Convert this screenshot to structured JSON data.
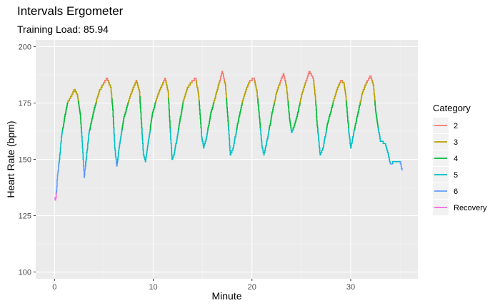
{
  "chart_data": {
    "type": "line",
    "title": "Intervals Ergometer",
    "subtitle": "Training Load: 85.94",
    "xlabel": "Minute",
    "ylabel": "Heart Rate (bpm)",
    "xlim": [
      -1.9,
      36.8
    ],
    "ylim": [
      97,
      203
    ],
    "x_ticks": [
      0,
      10,
      20,
      30
    ],
    "y_ticks": [
      100,
      125,
      150,
      175,
      200
    ],
    "grid": true,
    "legend": {
      "title": "Category",
      "placement": "right",
      "entries": [
        {
          "name": "2",
          "color": "#F8766D"
        },
        {
          "name": "3",
          "color": "#B79F00"
        },
        {
          "name": "4",
          "color": "#00BA38"
        },
        {
          "name": "5",
          "color": "#00BFC4"
        },
        {
          "name": "6",
          "color": "#619CFF"
        },
        {
          "name": "Recovery",
          "color": "#F564E3"
        }
      ]
    },
    "points": [
      [
        0,
        133
      ],
      [
        0.1,
        132
      ],
      [
        0.2,
        136
      ],
      [
        0.3,
        143
      ],
      [
        0.5,
        150
      ],
      [
        0.7,
        160
      ],
      [
        1.0,
        168
      ],
      [
        1.3,
        175
      ],
      [
        1.8,
        179
      ],
      [
        2.0,
        181
      ],
      [
        2.3,
        179
      ],
      [
        2.6,
        170
      ],
      [
        2.8,
        158
      ],
      [
        3.0,
        142
      ],
      [
        3.2,
        150
      ],
      [
        3.5,
        162
      ],
      [
        4.0,
        172
      ],
      [
        4.5,
        180
      ],
      [
        5.0,
        184
      ],
      [
        5.3,
        186
      ],
      [
        5.7,
        182
      ],
      [
        5.9,
        172
      ],
      [
        6.1,
        155
      ],
      [
        6.3,
        147
      ],
      [
        6.6,
        157
      ],
      [
        7.0,
        168
      ],
      [
        7.5,
        176
      ],
      [
        8.0,
        182
      ],
      [
        8.3,
        185
      ],
      [
        8.6,
        180
      ],
      [
        8.8,
        166
      ],
      [
        9.0,
        152
      ],
      [
        9.2,
        149
      ],
      [
        9.5,
        158
      ],
      [
        9.9,
        170
      ],
      [
        10.4,
        178
      ],
      [
        10.9,
        183
      ],
      [
        11.2,
        186
      ],
      [
        11.5,
        180
      ],
      [
        11.7,
        164
      ],
      [
        11.9,
        150
      ],
      [
        12.1,
        152
      ],
      [
        12.5,
        162
      ],
      [
        13.0,
        175
      ],
      [
        13.5,
        182
      ],
      [
        14.0,
        185
      ],
      [
        14.3,
        186
      ],
      [
        14.6,
        178
      ],
      [
        14.9,
        160
      ],
      [
        15.1,
        155
      ],
      [
        15.4,
        160
      ],
      [
        15.8,
        170
      ],
      [
        16.3,
        178
      ],
      [
        16.8,
        186
      ],
      [
        17.0,
        189
      ],
      [
        17.3,
        183
      ],
      [
        17.6,
        165
      ],
      [
        17.8,
        152
      ],
      [
        18.1,
        155
      ],
      [
        18.5,
        165
      ],
      [
        19.0,
        175
      ],
      [
        19.5,
        182
      ],
      [
        19.8,
        185
      ],
      [
        20.2,
        186
      ],
      [
        20.5,
        180
      ],
      [
        20.8,
        166
      ],
      [
        21.0,
        156
      ],
      [
        21.2,
        152
      ],
      [
        21.6,
        160
      ],
      [
        22.0,
        170
      ],
      [
        22.5,
        180
      ],
      [
        23.0,
        186
      ],
      [
        23.2,
        188
      ],
      [
        23.5,
        182
      ],
      [
        23.8,
        168
      ],
      [
        24.0,
        162
      ],
      [
        24.3,
        165
      ],
      [
        24.6,
        170
      ],
      [
        25.0,
        178
      ],
      [
        25.5,
        185
      ],
      [
        25.8,
        189
      ],
      [
        26.2,
        186
      ],
      [
        26.4,
        178
      ],
      [
        26.6,
        165
      ],
      [
        26.9,
        152
      ],
      [
        27.2,
        155
      ],
      [
        27.6,
        165
      ],
      [
        28.2,
        175
      ],
      [
        28.7,
        182
      ],
      [
        29.0,
        185
      ],
      [
        29.3,
        184
      ],
      [
        29.5,
        178
      ],
      [
        29.8,
        162
      ],
      [
        30.0,
        155
      ],
      [
        30.3,
        162
      ],
      [
        30.7,
        170
      ],
      [
        31.2,
        180
      ],
      [
        31.7,
        185
      ],
      [
        32.0,
        187
      ],
      [
        32.3,
        183
      ],
      [
        32.5,
        172
      ],
      [
        32.7,
        166
      ],
      [
        33.0,
        158
      ],
      [
        33.5,
        157
      ],
      [
        33.8,
        152
      ],
      [
        34.0,
        148
      ],
      [
        34.5,
        149
      ],
      [
        35.0,
        149
      ],
      [
        35.2,
        145
      ]
    ]
  }
}
